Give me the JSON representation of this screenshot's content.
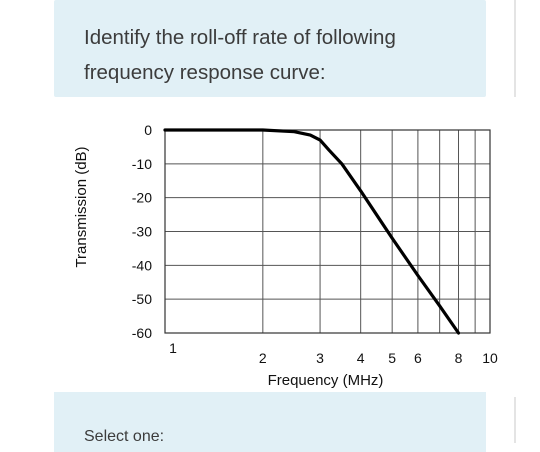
{
  "question": {
    "text": "Identify the roll-off rate of following\nfrequency response curve:"
  },
  "chart_data": {
    "type": "line",
    "xlabel": "Frequency (MHz)",
    "ylabel": "Transmission (dB)",
    "x_scale": "log",
    "xlim": [
      1,
      10
    ],
    "ylim": [
      -60,
      0
    ],
    "x_tick_labels": [
      "1",
      "2",
      "3",
      "4",
      "5",
      "6",
      "8",
      "10"
    ],
    "y_tick_labels": [
      "0",
      "-10",
      "-20",
      "-30",
      "-40",
      "-50",
      "-60"
    ],
    "y_ticks": [
      0,
      -10,
      -20,
      -30,
      -40,
      -50,
      -60
    ],
    "grid": true,
    "series": [
      {
        "x": [
          1,
          2,
          2.5,
          2.8,
          3.0,
          3.2,
          3.5,
          4,
          5,
          6,
          7,
          8
        ],
        "y": [
          0,
          0,
          -0.5,
          -1.5,
          -3,
          -6,
          -10,
          -18,
          -32,
          -43,
          -52,
          -60
        ],
        "color": "#000000"
      }
    ]
  },
  "answer": {
    "prompt": "Select one:"
  },
  "colors": {
    "card_background": "#e1f0f6",
    "text": "#3c3c3c",
    "grid": "#555555"
  }
}
